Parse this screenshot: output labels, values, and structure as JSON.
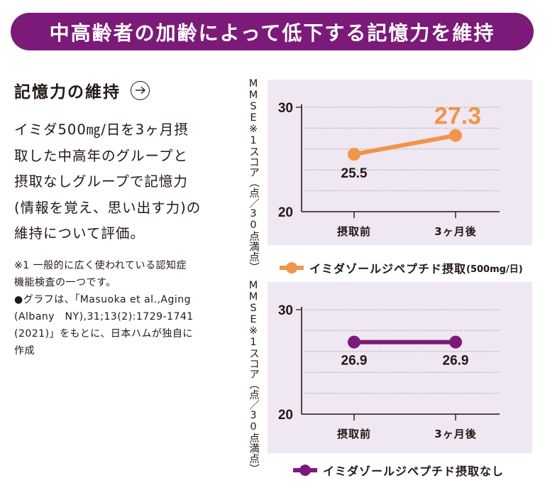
{
  "banner": {
    "title": "中高齢者の加齢によって低下する記憶力を維持"
  },
  "section": {
    "title": "記憶力の維持",
    "arrow_icon": "arrow-right-circle-icon",
    "description_lines": [
      "イミダ500㎎/日を3ヶ月摂",
      "取した中高年のグループと",
      "摂取なしグループで記憶力",
      "(情報を覚え、思い出す力)の",
      "維持について評価。"
    ],
    "notes_lines": [
      "※1 一般的に広く使われている認知症",
      "機能検査の一つです。",
      "●グラフは、「Masuoka et al.,Aging",
      "(Albany　NY),31;13(2):1729-1741",
      "(2021)」をもとに、日本ハムが独自に",
      "作成"
    ]
  },
  "colors": {
    "brand_purple": "#7b1a78",
    "orange": "#f0954a",
    "panel_bg": "#efe7f1",
    "text": "#231815"
  },
  "chart_data": [
    {
      "type": "line",
      "title": "",
      "ylabel": "MMSE※1スコア（点／30点満点）",
      "xlabel": "",
      "categories": [
        "摂取前",
        "3ヶ月後"
      ],
      "ylim": [
        20,
        30
      ],
      "yticks": [
        "20",
        "30"
      ],
      "gridlines": [
        22,
        24,
        26,
        28,
        30
      ],
      "grid": true,
      "series": [
        {
          "name": "イミダゾールジペプチド摂取",
          "name_suffix": "(500mg/日)",
          "color": "#f0954a",
          "values": [
            25.5,
            27.3
          ],
          "value_labels": [
            "25.5",
            "27.3"
          ]
        }
      ],
      "legend_position": "bottom"
    },
    {
      "type": "line",
      "title": "",
      "ylabel": "MMSE※1スコア（点／30点満点）",
      "xlabel": "",
      "categories": [
        "摂取前",
        "3ヶ月後"
      ],
      "ylim": [
        20,
        30
      ],
      "yticks": [
        "20",
        "30"
      ],
      "gridlines": [
        22,
        24,
        26,
        28,
        30
      ],
      "grid": true,
      "series": [
        {
          "name": "イミダゾールジペプチド摂取なし",
          "name_suffix": "",
          "color": "#7b1a78",
          "values": [
            26.9,
            26.9
          ],
          "value_labels": [
            "26.9",
            "26.9"
          ]
        }
      ],
      "legend_position": "bottom"
    }
  ]
}
